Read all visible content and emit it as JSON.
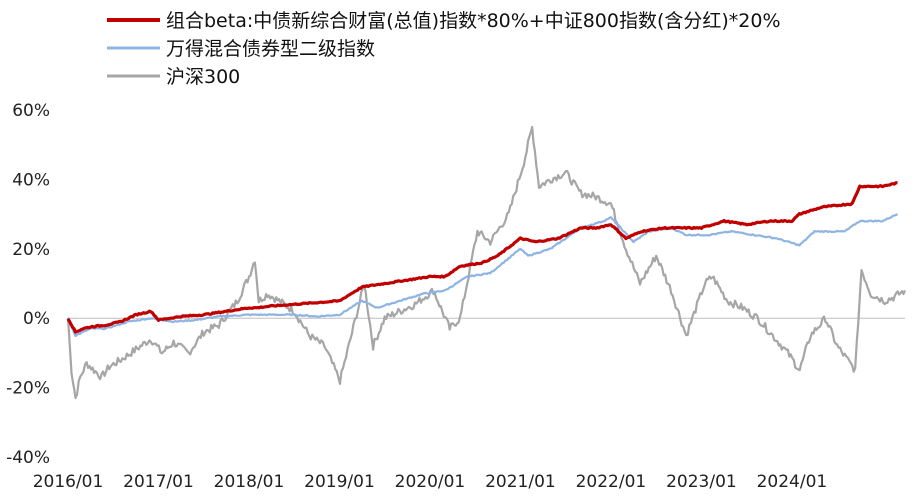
{
  "chart_data": {
    "type": "line",
    "title": "",
    "xlabel": "",
    "ylabel": "",
    "ylim": [
      -40,
      60
    ],
    "yticks": [
      -40,
      -20,
      0,
      20,
      40,
      60
    ],
    "ytick_labels": [
      "-40%",
      "-20%",
      "0%",
      "20%",
      "40%",
      "60%"
    ],
    "xlim": [
      "2016-01",
      "2025-04"
    ],
    "xticks": [
      "2016-01",
      "2017-01",
      "2018-01",
      "2019-01",
      "2020-01",
      "2021-01",
      "2022-01",
      "2023-01",
      "2024-01"
    ],
    "xtick_labels": [
      "2016/01",
      "2017/01",
      "2018/01",
      "2019/01",
      "2020/01",
      "2021/01",
      "2022/01",
      "2023/01",
      "2024/01"
    ],
    "grid": false,
    "legend_position": "top-left",
    "series": [
      {
        "name": "组合beta:中债新综合财富(总值)指数*80%+中证800指数(含分红)*20%",
        "color": "#c00000",
        "points": [
          [
            "2016-01-01",
            0
          ],
          [
            "2016-02-01",
            -4
          ],
          [
            "2016-03-01",
            -3
          ],
          [
            "2016-04-01",
            -2.5
          ],
          [
            "2016-06-01",
            -2
          ],
          [
            "2016-08-01",
            -1
          ],
          [
            "2016-10-01",
            1
          ],
          [
            "2016-12-01",
            2
          ],
          [
            "2017-01-01",
            -0.5
          ],
          [
            "2017-04-01",
            0.5
          ],
          [
            "2017-07-01",
            1
          ],
          [
            "2017-10-01",
            2
          ],
          [
            "2018-01-01",
            3
          ],
          [
            "2018-02-01",
            3
          ],
          [
            "2018-04-01",
            3.5
          ],
          [
            "2018-07-01",
            4
          ],
          [
            "2018-10-01",
            4.5
          ],
          [
            "2019-01-01",
            5
          ],
          [
            "2019-04-01",
            9
          ],
          [
            "2019-07-01",
            10
          ],
          [
            "2019-10-01",
            11
          ],
          [
            "2020-01-01",
            12
          ],
          [
            "2020-03-01",
            12
          ],
          [
            "2020-05-01",
            15
          ],
          [
            "2020-08-01",
            16
          ],
          [
            "2020-10-01",
            18
          ],
          [
            "2021-01-01",
            23
          ],
          [
            "2021-03-01",
            22
          ],
          [
            "2021-06-01",
            23
          ],
          [
            "2021-09-01",
            26
          ],
          [
            "2021-11-01",
            26
          ],
          [
            "2022-01-01",
            27
          ],
          [
            "2022-03-01",
            23
          ],
          [
            "2022-05-01",
            25
          ],
          [
            "2022-08-01",
            26
          ],
          [
            "2022-10-01",
            26
          ],
          [
            "2023-01-01",
            26
          ],
          [
            "2023-04-01",
            28
          ],
          [
            "2023-07-01",
            27
          ],
          [
            "2023-10-01",
            28
          ],
          [
            "2024-01-01",
            28
          ],
          [
            "2024-02-01",
            30
          ],
          [
            "2024-05-01",
            32
          ],
          [
            "2024-09-01",
            33
          ],
          [
            "2024-10-01",
            38
          ],
          [
            "2025-01-01",
            38
          ],
          [
            "2025-03-01",
            39
          ]
        ]
      },
      {
        "name": "万得混合债券型二级指数",
        "color": "#8eb4e3",
        "points": [
          [
            "2016-01-01",
            0
          ],
          [
            "2016-02-01",
            -5
          ],
          [
            "2016-04-01",
            -3
          ],
          [
            "2016-06-01",
            -3
          ],
          [
            "2016-09-01",
            -1
          ],
          [
            "2016-12-01",
            0
          ],
          [
            "2017-03-01",
            -1
          ],
          [
            "2017-06-01",
            -0.5
          ],
          [
            "2017-09-01",
            0.5
          ],
          [
            "2018-01-01",
            1
          ],
          [
            "2018-04-01",
            1
          ],
          [
            "2018-07-01",
            1
          ],
          [
            "2018-10-01",
            0.5
          ],
          [
            "2019-01-01",
            1
          ],
          [
            "2019-04-01",
            5
          ],
          [
            "2019-06-01",
            3
          ],
          [
            "2019-09-01",
            5
          ],
          [
            "2019-12-01",
            7
          ],
          [
            "2020-03-01",
            8
          ],
          [
            "2020-06-01",
            12
          ],
          [
            "2020-09-01",
            13
          ],
          [
            "2021-01-01",
            20
          ],
          [
            "2021-02-01",
            18
          ],
          [
            "2021-05-01",
            20
          ],
          [
            "2021-09-01",
            26
          ],
          [
            "2021-12-01",
            28
          ],
          [
            "2022-01-01",
            29
          ],
          [
            "2022-04-01",
            22
          ],
          [
            "2022-06-01",
            25
          ],
          [
            "2022-09-01",
            26
          ],
          [
            "2022-11-01",
            24
          ],
          [
            "2023-02-01",
            24
          ],
          [
            "2023-05-01",
            25
          ],
          [
            "2023-08-01",
            24
          ],
          [
            "2023-11-01",
            23
          ],
          [
            "2024-02-01",
            21
          ],
          [
            "2024-04-01",
            25
          ],
          [
            "2024-08-01",
            25
          ],
          [
            "2024-10-01",
            28
          ],
          [
            "2025-01-01",
            28
          ],
          [
            "2025-03-01",
            30
          ]
        ]
      },
      {
        "name": "沪深300",
        "color": "#a6a6a6",
        "points": [
          [
            "2016-01-01",
            0
          ],
          [
            "2016-01-15",
            -15
          ],
          [
            "2016-02-01",
            -23
          ],
          [
            "2016-02-20",
            -17
          ],
          [
            "2016-03-15",
            -13
          ],
          [
            "2016-04-15",
            -15
          ],
          [
            "2016-05-15",
            -17
          ],
          [
            "2016-06-15",
            -14
          ],
          [
            "2016-08-01",
            -12
          ],
          [
            "2016-10-01",
            -9
          ],
          [
            "2016-12-01",
            -6
          ],
          [
            "2017-01-15",
            -10
          ],
          [
            "2017-03-01",
            -7
          ],
          [
            "2017-05-01",
            -10
          ],
          [
            "2017-07-01",
            -4
          ],
          [
            "2017-09-01",
            -2
          ],
          [
            "2017-11-15",
            5
          ],
          [
            "2018-01-01",
            12
          ],
          [
            "2018-01-25",
            17
          ],
          [
            "2018-02-10",
            5
          ],
          [
            "2018-03-15",
            7
          ],
          [
            "2018-05-01",
            5
          ],
          [
            "2018-07-01",
            2
          ],
          [
            "2018-09-01",
            -5
          ],
          [
            "2018-11-01",
            -8
          ],
          [
            "2019-01-03",
            -18
          ],
          [
            "2019-02-15",
            -6
          ],
          [
            "2019-04-10",
            10
          ],
          [
            "2019-05-15",
            -8
          ],
          [
            "2019-07-01",
            0
          ],
          [
            "2019-09-01",
            2
          ],
          [
            "2019-11-01",
            4
          ],
          [
            "2020-01-15",
            8
          ],
          [
            "2020-03-20",
            -3
          ],
          [
            "2020-05-01",
            0
          ],
          [
            "2020-07-10",
            25
          ],
          [
            "2020-09-01",
            22
          ],
          [
            "2020-11-15",
            30
          ],
          [
            "2021-01-15",
            45
          ],
          [
            "2021-02-18",
            55
          ],
          [
            "2021-03-15",
            38
          ],
          [
            "2021-05-01",
            40
          ],
          [
            "2021-07-01",
            42
          ],
          [
            "2021-09-01",
            36
          ],
          [
            "2021-11-01",
            35
          ],
          [
            "2022-01-01",
            33
          ],
          [
            "2022-03-01",
            20
          ],
          [
            "2022-04-27",
            10
          ],
          [
            "2022-07-01",
            18
          ],
          [
            "2022-09-01",
            8
          ],
          [
            "2022-10-31",
            -5
          ],
          [
            "2023-01-15",
            10
          ],
          [
            "2023-02-15",
            12
          ],
          [
            "2023-04-15",
            5
          ],
          [
            "2023-06-15",
            3
          ],
          [
            "2023-08-15",
            0
          ],
          [
            "2023-10-15",
            -5
          ],
          [
            "2023-12-15",
            -10
          ],
          [
            "2024-02-02",
            -15
          ],
          [
            "2024-03-15",
            -5
          ],
          [
            "2024-05-15",
            0
          ],
          [
            "2024-07-01",
            -8
          ],
          [
            "2024-09-13",
            -15
          ],
          [
            "2024-10-08",
            14
          ],
          [
            "2024-11-15",
            7
          ],
          [
            "2025-01-10",
            5
          ],
          [
            "2025-02-15",
            6
          ],
          [
            "2025-03-31",
            8
          ]
        ]
      }
    ]
  }
}
